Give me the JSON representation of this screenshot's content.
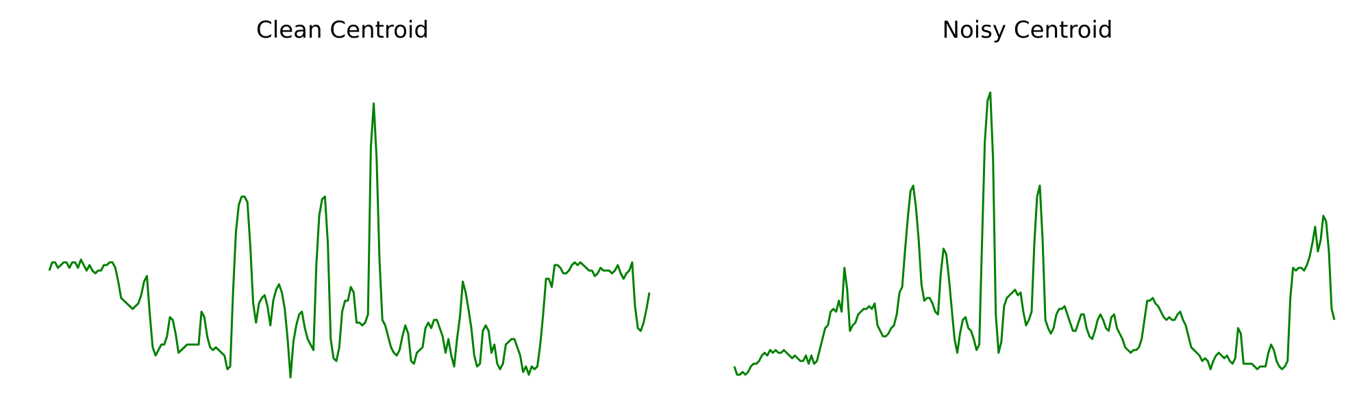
{
  "chart_data": [
    {
      "type": "line",
      "title": "Clean Centroid",
      "xlabel": "",
      "ylabel": "",
      "axes": "off",
      "grid": false,
      "ylim": [
        -0.15,
        1.0
      ],
      "xlim": [
        0,
        150
      ],
      "series": [
        {
          "color": "#008000",
          "values": [
            0.25,
            0.28,
            0.28,
            0.26,
            0.27,
            0.28,
            0.28,
            0.26,
            0.28,
            0.28,
            0.26,
            0.29,
            0.27,
            0.25,
            0.27,
            0.25,
            0.24,
            0.25,
            0.25,
            0.27,
            0.27,
            0.28,
            0.28,
            0.26,
            0.21,
            0.15,
            0.14,
            0.13,
            0.12,
            0.11,
            0.12,
            0.13,
            0.16,
            0.21,
            0.23,
            0.09,
            -0.03,
            -0.06,
            -0.04,
            -0.02,
            -0.02,
            0.01,
            0.08,
            0.07,
            0.02,
            -0.05,
            -0.04,
            -0.03,
            -0.02,
            -0.02,
            -0.02,
            -0.02,
            -0.02,
            0.1,
            0.08,
            0.01,
            -0.03,
            -0.04,
            -0.03,
            -0.04,
            -0.05,
            -0.06,
            -0.11,
            -0.1,
            0.17,
            0.39,
            0.49,
            0.52,
            0.52,
            0.5,
            0.34,
            0.13,
            0.06,
            0.13,
            0.15,
            0.16,
            0.12,
            0.05,
            0.14,
            0.18,
            0.2,
            0.17,
            0.11,
            0.0,
            -0.14,
            -0.01,
            0.05,
            0.09,
            0.1,
            0.04,
            0.0,
            -0.02,
            -0.04,
            0.27,
            0.45,
            0.51,
            0.52,
            0.35,
            0.0,
            -0.07,
            -0.08,
            -0.03,
            0.1,
            0.14,
            0.14,
            0.19,
            0.17,
            0.06,
            0.06,
            0.05,
            0.06,
            0.09,
            0.7,
            0.86,
            0.66,
            0.29,
            0.07,
            0.05,
            0.01,
            -0.03,
            -0.05,
            -0.06,
            -0.04,
            0.01,
            0.05,
            0.02,
            -0.08,
            -0.09,
            -0.05,
            -0.04,
            -0.03,
            0.04,
            0.06,
            0.04,
            0.07,
            0.07,
            0.04,
            0.01,
            -0.05,
            0.0,
            -0.06,
            -0.1,
            0.0,
            0.08,
            0.21,
            0.17,
            0.11,
            0.04,
            -0.06,
            -0.1,
            -0.09,
            0.03,
            0.05,
            0.03,
            -0.05,
            -0.02,
            -0.09,
            -0.11,
            -0.09,
            -0.02,
            -0.01,
            0.0,
            0.0,
            -0.03,
            -0.06,
            -0.12,
            -0.1,
            -0.13,
            -0.1,
            -0.11,
            -0.1,
            -0.02,
            0.09,
            0.22,
            0.22,
            0.19,
            0.27,
            0.27,
            0.26,
            0.24,
            0.24,
            0.25,
            0.27,
            0.28,
            0.27,
            0.28,
            0.27,
            0.26,
            0.25,
            0.25,
            0.23,
            0.24,
            0.26,
            0.25,
            0.25,
            0.25,
            0.24,
            0.25,
            0.27,
            0.24,
            0.22,
            0.24,
            0.25,
            0.28,
            0.12,
            0.04,
            0.03,
            0.06,
            0.11,
            0.17
          ]
        }
      ]
    },
    {
      "type": "line",
      "title": "Noisy Centroid",
      "xlabel": "",
      "ylabel": "",
      "axes": "off",
      "grid": false,
      "ylim": [
        -0.15,
        1.0
      ],
      "xlim": [
        0,
        150
      ],
      "series": [
        {
          "color": "#008000",
          "values": [
            -0.1,
            -0.13,
            -0.13,
            -0.12,
            -0.13,
            -0.12,
            -0.1,
            -0.09,
            -0.09,
            -0.08,
            -0.06,
            -0.05,
            -0.06,
            -0.04,
            -0.05,
            -0.04,
            -0.05,
            -0.05,
            -0.04,
            -0.05,
            -0.06,
            -0.07,
            -0.06,
            -0.07,
            -0.08,
            -0.08,
            -0.06,
            -0.09,
            -0.06,
            -0.09,
            -0.08,
            -0.04,
            0.0,
            0.04,
            0.05,
            0.1,
            0.11,
            0.1,
            0.14,
            0.1,
            0.26,
            0.18,
            0.03,
            0.05,
            0.06,
            0.09,
            0.1,
            0.11,
            0.11,
            0.12,
            0.11,
            0.13,
            0.05,
            0.03,
            0.01,
            0.01,
            0.02,
            0.04,
            0.05,
            0.09,
            0.17,
            0.19,
            0.32,
            0.44,
            0.54,
            0.56,
            0.48,
            0.36,
            0.2,
            0.14,
            0.15,
            0.15,
            0.13,
            0.1,
            0.09,
            0.24,
            0.33,
            0.31,
            0.22,
            0.11,
            0.0,
            -0.05,
            0.02,
            0.07,
            0.08,
            0.04,
            0.03,
            0.0,
            -0.04,
            -0.02,
            0.36,
            0.72,
            0.87,
            0.9,
            0.66,
            0.09,
            -0.05,
            -0.01,
            0.12,
            0.15,
            0.16,
            0.17,
            0.18,
            0.16,
            0.17,
            0.1,
            0.05,
            0.07,
            0.1,
            0.35,
            0.52,
            0.56,
            0.36,
            0.07,
            0.04,
            0.02,
            0.04,
            0.09,
            0.11,
            0.11,
            0.12,
            0.09,
            0.06,
            0.03,
            0.03,
            0.06,
            0.09,
            0.09,
            0.04,
            0.01,
            0.0,
            0.03,
            0.07,
            0.09,
            0.07,
            0.04,
            0.03,
            0.08,
            0.09,
            0.04,
            0.02,
            0.0,
            -0.03,
            -0.04,
            -0.05,
            -0.04,
            -0.04,
            -0.03,
            0.0,
            0.07,
            0.14,
            0.14,
            0.15,
            0.13,
            0.12,
            0.1,
            0.08,
            0.07,
            0.08,
            0.07,
            0.07,
            0.09,
            0.1,
            0.07,
            0.05,
            0.01,
            -0.03,
            -0.04,
            -0.05,
            -0.06,
            -0.08,
            -0.07,
            -0.08,
            -0.11,
            -0.08,
            -0.06,
            -0.05,
            -0.06,
            -0.07,
            -0.06,
            -0.08,
            -0.09,
            -0.07,
            0.04,
            0.02,
            -0.09,
            -0.09,
            -0.09,
            -0.09,
            -0.1,
            -0.11,
            -0.1,
            -0.1,
            -0.1,
            -0.05,
            -0.02,
            -0.04,
            -0.08,
            -0.1,
            -0.11,
            -0.1,
            -0.08,
            0.15,
            0.26,
            0.25,
            0.26,
            0.26,
            0.25,
            0.27,
            0.3,
            0.35,
            0.41,
            0.32,
            0.36,
            0.45,
            0.43,
            0.32,
            0.11,
            0.07
          ]
        }
      ]
    }
  ]
}
